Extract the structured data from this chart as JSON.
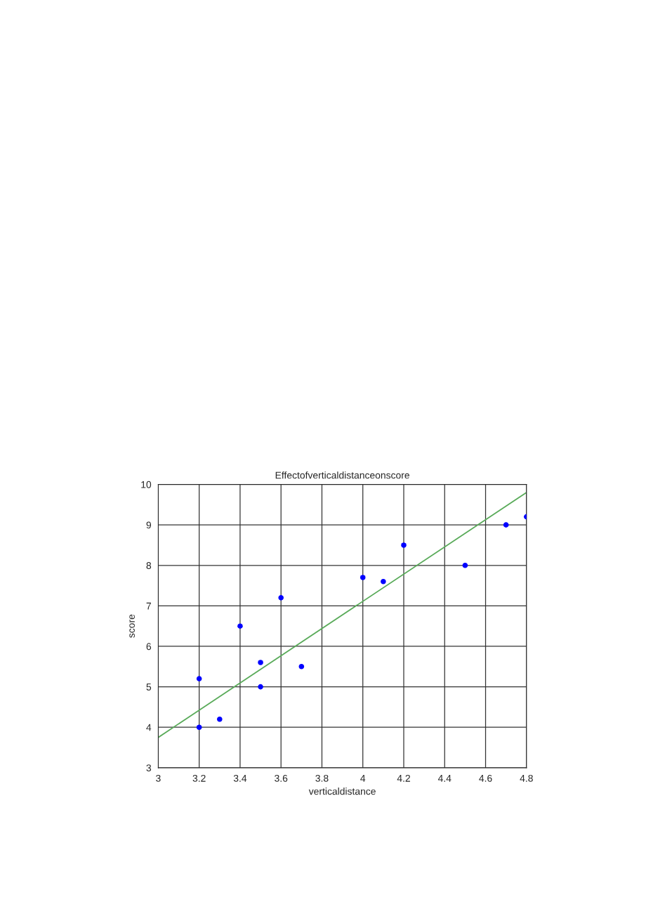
{
  "chart_data": {
    "type": "scatter",
    "title": "Effectofverticaldistanceonscore",
    "xlabel": "verticaldistance",
    "ylabel": "score",
    "xlim": [
      3,
      4.8
    ],
    "xticks": [
      3,
      3.2,
      3.4,
      3.6,
      3.8,
      4,
      4.2,
      4.4,
      4.6,
      4.8
    ],
    "ylim": [
      3,
      10
    ],
    "yticks": [
      3,
      4,
      5,
      6,
      7,
      8,
      9,
      10
    ],
    "grid": true,
    "series": [
      {
        "color": "#0000ff",
        "marker": "circle",
        "x": [
          3.2,
          3.3,
          3.2,
          3.4,
          3.5,
          3.5,
          3.6,
          3.7,
          4.0,
          4.1,
          4.2,
          4.5,
          4.7,
          4.8
        ],
        "values": [
          4.0,
          4.2,
          5.2,
          6.5,
          5.6,
          5.0,
          7.2,
          5.5,
          7.7,
          7.6,
          8.5,
          8.0,
          9.0,
          9.2
        ]
      },
      {
        "type": "line",
        "color": "#5aab5a",
        "marker": "none",
        "line_style": "solid",
        "x": [
          3,
          4.8
        ],
        "values": [
          3.75,
          9.8
        ]
      }
    ]
  }
}
